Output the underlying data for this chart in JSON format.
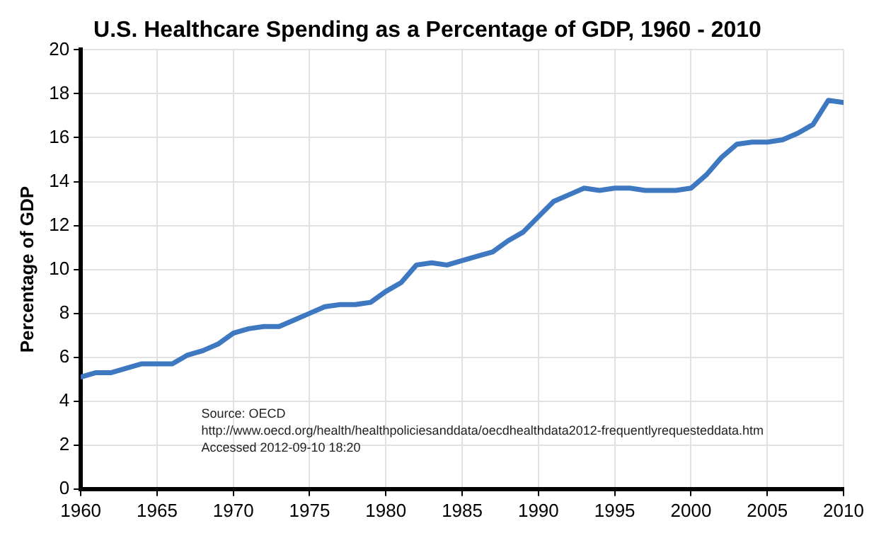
{
  "chart_data": {
    "type": "line",
    "title": "U.S. Healthcare Spending as a Percentage of GDP, 1960 - 2010",
    "ylabel": "Percentage of GDP",
    "x": [
      1960,
      1961,
      1962,
      1963,
      1964,
      1965,
      1966,
      1967,
      1968,
      1969,
      1970,
      1971,
      1972,
      1973,
      1974,
      1975,
      1976,
      1977,
      1978,
      1979,
      1980,
      1981,
      1982,
      1983,
      1984,
      1985,
      1986,
      1987,
      1988,
      1989,
      1990,
      1991,
      1992,
      1993,
      1994,
      1995,
      1996,
      1997,
      1998,
      1999,
      2000,
      2001,
      2002,
      2003,
      2004,
      2005,
      2006,
      2007,
      2008,
      2009,
      2010
    ],
    "series": [
      {
        "color": "#3d78c0",
        "values": [
          5.1,
          5.3,
          5.3,
          5.5,
          5.7,
          5.7,
          5.7,
          6.1,
          6.3,
          6.6,
          7.1,
          7.3,
          7.4,
          7.4,
          7.7,
          8.0,
          8.3,
          8.4,
          8.4,
          8.5,
          9.0,
          9.4,
          10.2,
          10.3,
          10.2,
          10.4,
          10.6,
          10.8,
          11.3,
          11.7,
          12.4,
          13.1,
          13.4,
          13.7,
          13.6,
          13.7,
          13.7,
          13.6,
          13.6,
          13.6,
          13.7,
          14.3,
          15.1,
          15.7,
          15.8,
          15.8,
          15.9,
          16.2,
          16.6,
          17.7,
          17.6
        ]
      }
    ],
    "xlim": [
      1960,
      2010
    ],
    "xticks": [
      1960,
      1965,
      1970,
      1975,
      1980,
      1985,
      1990,
      1995,
      2000,
      2005,
      2010
    ],
    "ylim": [
      0,
      20
    ],
    "yticks": [
      0,
      2,
      4,
      6,
      8,
      10,
      12,
      14,
      16,
      18,
      20
    ],
    "grid": true,
    "legend": false,
    "marker": "none",
    "line_style": "solid",
    "annotations": [
      "Source: OECD",
      "http://www.oecd.org/health/healthpoliciesanddata/oecdhealthdata2012-frequentlyrequesteddata.htm",
      "Accessed 2012-09-10 18:20"
    ]
  }
}
